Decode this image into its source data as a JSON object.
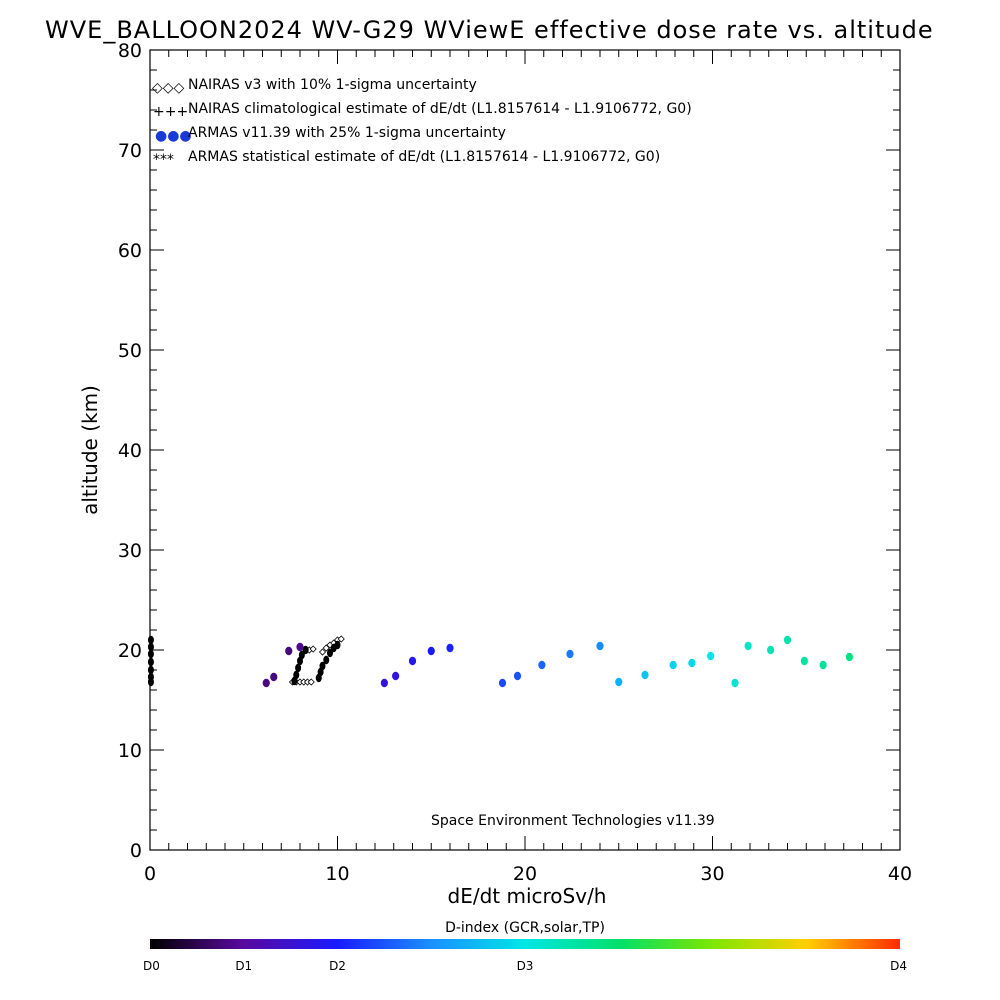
{
  "chart_data": {
    "type": "scatter",
    "title": "WVE_BALLOON2024 WV-G29 WViewE effective dose rate vs. altitude",
    "xlabel": "dE/dt microSv/h",
    "ylabel": "altitude (km)",
    "xlim": [
      0,
      40
    ],
    "ylim": [
      0,
      80
    ],
    "x_ticks": [
      "0",
      "10",
      "20",
      "30",
      "40"
    ],
    "y_ticks": [
      "0",
      "10",
      "20",
      "30",
      "40",
      "50",
      "60",
      "70",
      "80"
    ],
    "legend_placement": "top-left",
    "legend": [
      {
        "symbol": "◇◇◇",
        "label": "NAIRAS v3 with 10% 1-sigma uncertainty"
      },
      {
        "symbol": "+++",
        "label": "NAIRAS climatological estimate of dE/dt (L1.8157614 - L1.9106772, G0)"
      },
      {
        "symbol": "●●●",
        "label": "ARMAS v11.39 with 25% 1-sigma uncertainty",
        "color": "#1a3ad8"
      },
      {
        "symbol": "***",
        "label": "ARMAS statistical estimate of dE/dt (L1.8157614 - L1.9106772, G0)"
      }
    ],
    "annotation": "Space Environment Technologies v11.39",
    "colorbar": {
      "label": "D-index (GCR,solar,TP)",
      "ticks": [
        {
          "label": "D0",
          "pos": 0
        },
        {
          "label": "D1",
          "pos": 0.125
        },
        {
          "label": "D2",
          "pos": 0.25
        },
        {
          "label": "D3",
          "pos": 0.5
        },
        {
          "label": "D4",
          "pos": 1
        }
      ]
    },
    "series": [
      {
        "name": "NAIRAS v3 with 10% 1-sigma uncertainty",
        "marker": "diamond",
        "color": "#000000",
        "points": [
          [
            7.6,
            16.8
          ],
          [
            7.8,
            16.8
          ],
          [
            8.0,
            16.8
          ],
          [
            8.2,
            16.8
          ],
          [
            8.4,
            16.8
          ],
          [
            8.6,
            16.8
          ],
          [
            8.5,
            20.0
          ],
          [
            8.7,
            20.1
          ],
          [
            9.2,
            19.8
          ],
          [
            9.4,
            20.2
          ],
          [
            9.6,
            20.5
          ],
          [
            9.8,
            20.7
          ],
          [
            10.0,
            21.0
          ],
          [
            10.2,
            21.1
          ]
        ]
      },
      {
        "name": "ARMAS statistical estimate of dE/dt (L1.8157614 - L1.9106772, G0)",
        "marker": "star",
        "color": "#000000",
        "points": [
          [
            0.05,
            16.8
          ],
          [
            0.05,
            17.3
          ],
          [
            0.05,
            18.0
          ],
          [
            0.05,
            18.8
          ],
          [
            0.05,
            19.6
          ],
          [
            0.05,
            20.3
          ],
          [
            0.05,
            21.0
          ],
          [
            7.7,
            16.9
          ],
          [
            7.8,
            17.5
          ],
          [
            7.9,
            18.2
          ],
          [
            8.0,
            18.9
          ],
          [
            8.1,
            19.5
          ],
          [
            8.3,
            20.0
          ],
          [
            9.0,
            17.2
          ],
          [
            9.1,
            17.8
          ],
          [
            9.2,
            18.4
          ],
          [
            9.4,
            19.0
          ],
          [
            9.6,
            19.7
          ],
          [
            9.8,
            20.2
          ],
          [
            10.0,
            20.5
          ]
        ]
      },
      {
        "name": "ARMAS v11.39 with 25% 1-sigma uncertainty",
        "marker": "filled-circle",
        "points": [
          {
            "x": 6.2,
            "y": 16.7,
            "d": 0.1
          },
          {
            "x": 6.6,
            "y": 17.3,
            "d": 0.1
          },
          {
            "x": 7.4,
            "y": 19.9,
            "d": 0.1
          },
          {
            "x": 8.0,
            "y": 20.3,
            "d": 0.11
          },
          {
            "x": 12.5,
            "y": 16.7,
            "d": 0.2
          },
          {
            "x": 13.1,
            "y": 17.4,
            "d": 0.21
          },
          {
            "x": 14.0,
            "y": 18.9,
            "d": 0.23
          },
          {
            "x": 15.0,
            "y": 19.9,
            "d": 0.25
          },
          {
            "x": 16.0,
            "y": 20.2,
            "d": 0.26
          },
          {
            "x": 18.8,
            "y": 16.7,
            "d": 0.3
          },
          {
            "x": 19.6,
            "y": 17.4,
            "d": 0.31
          },
          {
            "x": 20.9,
            "y": 18.5,
            "d": 0.33
          },
          {
            "x": 22.4,
            "y": 19.6,
            "d": 0.35
          },
          {
            "x": 24.0,
            "y": 20.4,
            "d": 0.37
          },
          {
            "x": 25.0,
            "y": 16.8,
            "d": 0.42
          },
          {
            "x": 26.4,
            "y": 17.5,
            "d": 0.45
          },
          {
            "x": 27.9,
            "y": 18.5,
            "d": 0.47
          },
          {
            "x": 28.9,
            "y": 18.7,
            "d": 0.48
          },
          {
            "x": 29.9,
            "y": 19.4,
            "d": 0.5
          },
          {
            "x": 31.2,
            "y": 16.7,
            "d": 0.52
          },
          {
            "x": 31.9,
            "y": 20.4,
            "d": 0.53
          },
          {
            "x": 33.1,
            "y": 20.0,
            "d": 0.55
          },
          {
            "x": 34.0,
            "y": 21.0,
            "d": 0.56
          },
          {
            "x": 34.9,
            "y": 18.9,
            "d": 0.57
          },
          {
            "x": 35.9,
            "y": 18.5,
            "d": 0.58
          },
          {
            "x": 37.3,
            "y": 19.3,
            "d": 0.6
          }
        ]
      }
    ]
  }
}
